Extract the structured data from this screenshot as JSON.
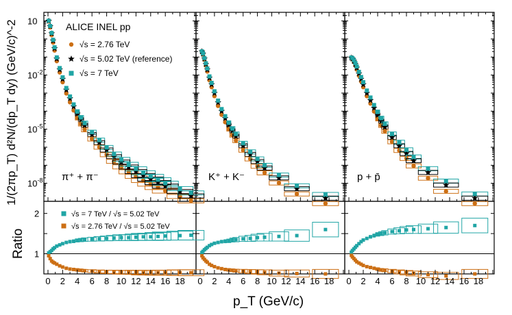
{
  "chart_data": {
    "type": "scatter",
    "collaboration_label": "ALICE INEL pp",
    "y_title_top": "1/(2πp_T) d²N/(dp_T dy) (GeV/c)^-2",
    "y_title_bottom": "Ratio",
    "x_title": "p_T (GeV/c)",
    "xlim": [
      0,
      20
    ],
    "x_ticks": [
      "0",
      "2",
      "4",
      "6",
      "8",
      "10",
      "12",
      "14",
      "16",
      "18"
    ],
    "top_ylim": [
      1e-09,
      30
    ],
    "top_yscale": "log",
    "top_y_ticks": [
      "10",
      "10^-2",
      "10^-5",
      "10^-8"
    ],
    "ratio_ylim": [
      0.5,
      2.3
    ],
    "ratio_y_ticks": [
      "1",
      "2"
    ],
    "legend_top": [
      {
        "label": "√s = 2.76 TeV",
        "color": "#cc6f14",
        "marker": "circle"
      },
      {
        "label": "√s = 5.02 TeV (reference)",
        "color": "#000000",
        "marker": "star"
      },
      {
        "label": "√s = 7 TeV",
        "color": "#20a5a5",
        "marker": "square"
      }
    ],
    "legend_ratio": [
      {
        "label": "√s = 7 TeV / √s = 5.02 TeV",
        "color": "#20a5a5"
      },
      {
        "label": "√s = 2.76 TeV / √s = 5.02 TeV",
        "color": "#cc6f14"
      }
    ],
    "panels": [
      {
        "particle_label": "π⁺ + π⁻",
        "spectra": {
          "x": [
            0.1,
            0.3,
            0.5,
            0.7,
            0.9,
            1.2,
            1.6,
            2.0,
            2.5,
            3.0,
            3.5,
            4.0,
            4.5,
            5.0,
            6.0,
            7.0,
            8.0,
            9.0,
            10.0,
            11.0,
            12.0,
            13.0,
            14.0,
            15.0,
            16.0,
            18.0,
            19.5
          ],
          "cms_5_02": [
            10,
            5,
            2,
            0.8,
            0.3,
            0.08,
            0.02,
            0.006,
            0.0015,
            0.0005,
            0.00018,
            7e-05,
            3.3e-05,
            1.6e-05,
            5e-06,
            1.8e-06,
            7e-07,
            3e-07,
            1.5e-07,
            8e-08,
            4.5e-08,
            2.7e-08,
            1.7e-08,
            1.1e-08,
            7e-09,
            3.5e-09,
            2e-09
          ],
          "cms_2_76_ratio": [
            0.95,
            0.88,
            0.82,
            0.79,
            0.77,
            0.74,
            0.7,
            0.67,
            0.64,
            0.62,
            0.61,
            0.6,
            0.59,
            0.58,
            0.57,
            0.56,
            0.55,
            0.55,
            0.54,
            0.54,
            0.54,
            0.53,
            0.53,
            0.53,
            0.53,
            0.53,
            0.53
          ],
          "cms_7_ratio": [
            1.02,
            1.05,
            1.08,
            1.12,
            1.15,
            1.19,
            1.22,
            1.25,
            1.28,
            1.3,
            1.31,
            1.33,
            1.34,
            1.35,
            1.36,
            1.37,
            1.38,
            1.39,
            1.4,
            1.4,
            1.41,
            1.42,
            1.42,
            1.43,
            1.44,
            1.45,
            1.46
          ]
        }
      },
      {
        "particle_label": "K⁺ + K⁻",
        "spectra": {
          "x": [
            0.25,
            0.4,
            0.6,
            0.8,
            1.0,
            1.3,
            1.6,
            2.0,
            2.5,
            3.0,
            3.5,
            4.0,
            4.5,
            5.0,
            6.0,
            7.0,
            8.0,
            9.0,
            11.0,
            13.5,
            17.5
          ],
          "cms_5_02": [
            0.2,
            0.15,
            0.08,
            0.04,
            0.02,
            0.007,
            0.003,
            0.001,
            0.0003,
            0.0001,
            4e-05,
            1.7e-05,
            8e-06,
            4e-06,
            1.2e-06,
            4e-07,
            1.6e-07,
            7e-08,
            2e-08,
            5e-09,
            1.5e-09
          ],
          "cms_2_76_ratio": [
            0.95,
            0.9,
            0.86,
            0.82,
            0.79,
            0.74,
            0.71,
            0.68,
            0.65,
            0.63,
            0.61,
            0.6,
            0.59,
            0.58,
            0.57,
            0.56,
            0.55,
            0.54,
            0.52,
            0.51,
            0.5
          ],
          "cms_7_ratio": [
            1.03,
            1.06,
            1.1,
            1.13,
            1.16,
            1.2,
            1.23,
            1.26,
            1.28,
            1.3,
            1.31,
            1.32,
            1.34,
            1.35,
            1.37,
            1.38,
            1.4,
            1.41,
            1.43,
            1.45,
            1.6
          ]
        }
      },
      {
        "particle_label": "p + p̄",
        "spectra": {
          "x": [
            0.35,
            0.5,
            0.7,
            0.9,
            1.1,
            1.4,
            1.7,
            2.0,
            2.5,
            3.0,
            3.5,
            4.0,
            4.5,
            5.0,
            6.0,
            7.0,
            8.0,
            9.0,
            11.0,
            13.5,
            17.5
          ],
          "cms_5_02": [
            0.09,
            0.08,
            0.06,
            0.04,
            0.025,
            0.012,
            0.006,
            0.003,
            0.001,
            0.0004,
            0.00015,
            6e-05,
            2.7e-05,
            1.3e-05,
            3.5e-06,
            1.2e-06,
            4.5e-07,
            1.8e-07,
            4e-08,
            8e-09,
            1.5e-09
          ],
          "cms_2_76_ratio": [
            0.96,
            0.92,
            0.88,
            0.84,
            0.8,
            0.77,
            0.74,
            0.71,
            0.68,
            0.66,
            0.64,
            0.62,
            0.6,
            0.59,
            0.57,
            0.55,
            0.53,
            0.51,
            0.48,
            0.45,
            0.5
          ],
          "cms_7_ratio": [
            1.04,
            1.08,
            1.12,
            1.16,
            1.2,
            1.25,
            1.3,
            1.34,
            1.38,
            1.42,
            1.45,
            1.48,
            1.5,
            1.52,
            1.55,
            1.57,
            1.59,
            1.6,
            1.62,
            1.65,
            1.7
          ]
        }
      }
    ]
  }
}
